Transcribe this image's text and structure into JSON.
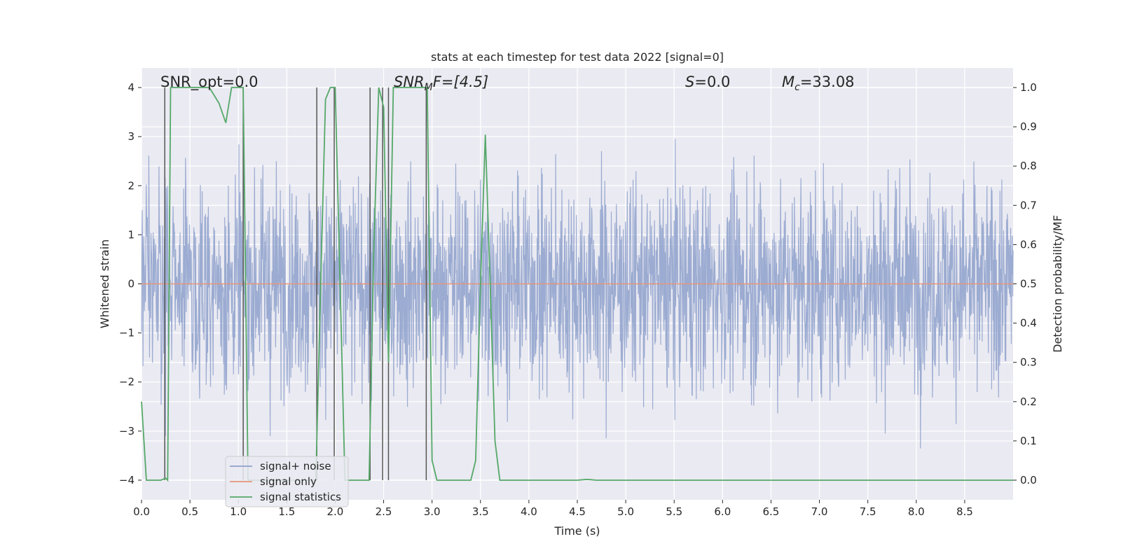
{
  "chart_data": {
    "type": "line",
    "title": "stats at each timestep for test data 2022 [signal=0]",
    "xlabel": "Time (s)",
    "ylabel_left": "Whitened strain",
    "ylabel_right": "Detection probability/MF",
    "xlim": [
      0.0,
      9.0
    ],
    "ylim_left": [
      -4.4,
      4.4
    ],
    "ylim_right": [
      -0.05,
      1.05
    ],
    "xticks": [
      0.0,
      0.5,
      1.0,
      1.5,
      2.0,
      2.5,
      3.0,
      3.5,
      4.0,
      4.5,
      5.0,
      5.5,
      6.0,
      6.5,
      7.0,
      7.5,
      8.0,
      8.5
    ],
    "xtick_labels": [
      "0.0",
      "0.5",
      "1.0",
      "1.5",
      "2.0",
      "2.5",
      "3.0",
      "3.5",
      "4.0",
      "4.5",
      "5.0",
      "5.5",
      "6.0",
      "6.5",
      "7.0",
      "7.5",
      "8.0",
      "8.5"
    ],
    "yticks_left": [
      -4,
      -3,
      -2,
      -1,
      0,
      1,
      2,
      3,
      4
    ],
    "ytick_labels_left": [
      "−4",
      "−3",
      "−2",
      "−1",
      "0",
      "1",
      "2",
      "3",
      "4"
    ],
    "yticks_right": [
      0.0,
      0.1,
      0.2,
      0.3,
      0.4,
      0.5,
      0.6,
      0.7,
      0.8,
      0.9,
      1.0
    ],
    "ytick_labels_right": [
      "0.0",
      "0.1",
      "0.2",
      "0.3",
      "0.4",
      "0.5",
      "0.6",
      "0.7",
      "0.8",
      "0.9",
      "1.0"
    ],
    "grid": true,
    "annotations": {
      "snr_opt": "SNR_opt=0.0",
      "snr_mf_base": "SNR",
      "snr_mf_sub": "M",
      "snr_mf_rest": "F=[4.5]",
      "s_label": "S",
      "s_value": "=0.0",
      "mc_base": "M",
      "mc_sub": "c",
      "mc_value": "=33.08"
    },
    "series": [
      {
        "name": "signal+ noise",
        "color": "#8da0cb",
        "axis": "left",
        "kind": "whitened noise, approx. band ±2.5 with peaks to ±4",
        "x_range": [
          0.0,
          9.0
        ],
        "typical_amplitude": 1.6,
        "peak_amplitude": 4.0
      },
      {
        "name": "signal only",
        "color": "#e4967a",
        "axis": "left",
        "x": [
          0.0,
          9.0
        ],
        "y": [
          0.0,
          0.0
        ]
      },
      {
        "name": "signal statistics",
        "color": "#55a868",
        "axis": "right",
        "x": [
          0.0,
          0.05,
          0.2,
          0.25,
          0.27,
          0.3,
          0.4,
          0.5,
          0.6,
          0.7,
          0.8,
          0.87,
          0.93,
          1.0,
          1.05,
          1.1,
          1.15,
          1.2,
          1.25,
          1.3,
          1.4,
          1.5,
          1.6,
          1.7,
          1.8,
          1.85,
          1.9,
          1.95,
          2.0,
          2.05,
          2.1,
          2.15,
          2.2,
          2.3,
          2.35,
          2.4,
          2.45,
          2.5,
          2.55,
          2.6,
          2.7,
          2.8,
          2.9,
          2.95,
          3.0,
          3.05,
          3.1,
          3.2,
          3.3,
          3.4,
          3.45,
          3.5,
          3.55,
          3.6,
          3.65,
          3.7,
          3.8,
          4.0,
          4.5,
          4.6,
          4.7,
          5.0,
          6.0,
          7.0,
          8.0,
          9.0
        ],
        "y": [
          0.2,
          0.0,
          0.0,
          0.005,
          0.0,
          1.0,
          1.0,
          1.0,
          1.0,
          1.0,
          0.96,
          0.91,
          1.0,
          1.0,
          1.0,
          0.0,
          0.0,
          0.0,
          0.0,
          0.0,
          0.0,
          0.0,
          0.0,
          0.0,
          0.0,
          0.5,
          0.97,
          1.0,
          1.0,
          0.5,
          0.0,
          0.0,
          0.0,
          0.0,
          0.0,
          0.6,
          1.0,
          0.95,
          0.3,
          1.0,
          1.0,
          1.0,
          1.0,
          1.0,
          0.05,
          0.0,
          0.0,
          0.0,
          0.0,
          0.0,
          0.05,
          0.5,
          0.88,
          0.5,
          0.1,
          0.0,
          0.0,
          0.0,
          0.0,
          0.002,
          0.0,
          0.0,
          0.0,
          0.0,
          0.0,
          0.0
        ]
      }
    ],
    "vertical_lines": {
      "color": "#555555",
      "x": [
        0.24,
        1.05,
        1.81,
        1.99,
        2.36,
        2.49,
        2.55,
        2.94
      ]
    },
    "legend": {
      "placement": "lower-left",
      "entries": [
        "signal+ noise",
        "signal only",
        "signal statistics"
      ]
    }
  }
}
